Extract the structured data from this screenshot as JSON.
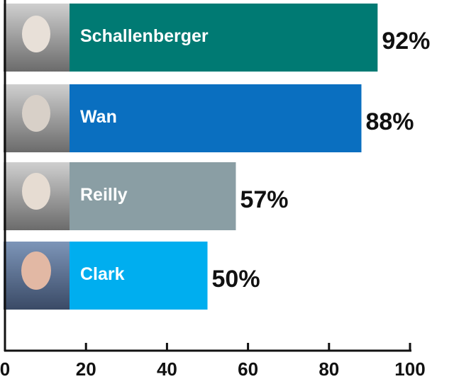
{
  "chart_data": {
    "type": "bar",
    "orientation": "horizontal",
    "categories": [
      "Schallenberger",
      "Wan",
      "Reilly",
      "Clark"
    ],
    "values": [
      92,
      88,
      57,
      50
    ],
    "value_labels": [
      "92%",
      "88%",
      "57%",
      "50%"
    ],
    "colors": [
      "#007a73",
      "#0a6fc0",
      "#8a9ea4",
      "#00aeef"
    ],
    "xlim": [
      0,
      100
    ],
    "xticks": [
      0,
      20,
      40,
      60,
      80,
      100
    ]
  }
}
